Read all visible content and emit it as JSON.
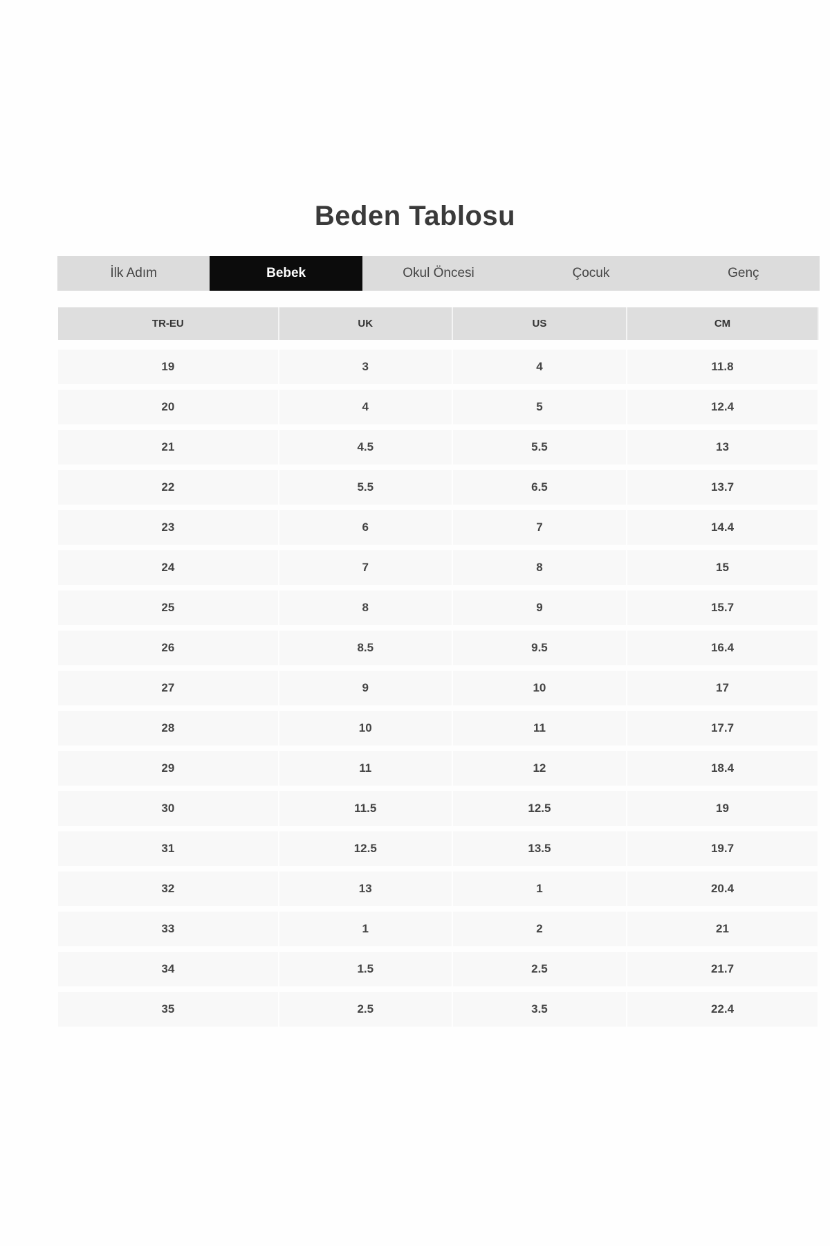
{
  "title": "Beden Tablosu",
  "tabs": [
    {
      "label": "İlk Adım",
      "active": false
    },
    {
      "label": "Bebek",
      "active": true
    },
    {
      "label": "Okul Öncesi",
      "active": false
    },
    {
      "label": "Çocuk",
      "active": false
    },
    {
      "label": "Genç",
      "active": false
    }
  ],
  "table": {
    "headers": [
      "TR-EU",
      "UK",
      "US",
      "CM"
    ],
    "rows": [
      [
        "19",
        "3",
        "4",
        "11.8"
      ],
      [
        "20",
        "4",
        "5",
        "12.4"
      ],
      [
        "21",
        "4.5",
        "5.5",
        "13"
      ],
      [
        "22",
        "5.5",
        "6.5",
        "13.7"
      ],
      [
        "23",
        "6",
        "7",
        "14.4"
      ],
      [
        "24",
        "7",
        "8",
        "15"
      ],
      [
        "25",
        "8",
        "9",
        "15.7"
      ],
      [
        "26",
        "8.5",
        "9.5",
        "16.4"
      ],
      [
        "27",
        "9",
        "10",
        "17"
      ],
      [
        "28",
        "10",
        "11",
        "17.7"
      ],
      [
        "29",
        "11",
        "12",
        "18.4"
      ],
      [
        "30",
        "11.5",
        "12.5",
        "19"
      ],
      [
        "31",
        "12.5",
        "13.5",
        "19.7"
      ],
      [
        "32",
        "13",
        "1",
        "20.4"
      ],
      [
        "33",
        "1",
        "2",
        "21"
      ],
      [
        "34",
        "1.5",
        "2.5",
        "21.7"
      ],
      [
        "35",
        "2.5",
        "3.5",
        "22.4"
      ]
    ]
  },
  "colors": {
    "active_tab": "#0c0c0c",
    "tab_bar": "#dcdcdc",
    "header_bg": "#dedede",
    "row_bg": "#f8f8f8"
  }
}
